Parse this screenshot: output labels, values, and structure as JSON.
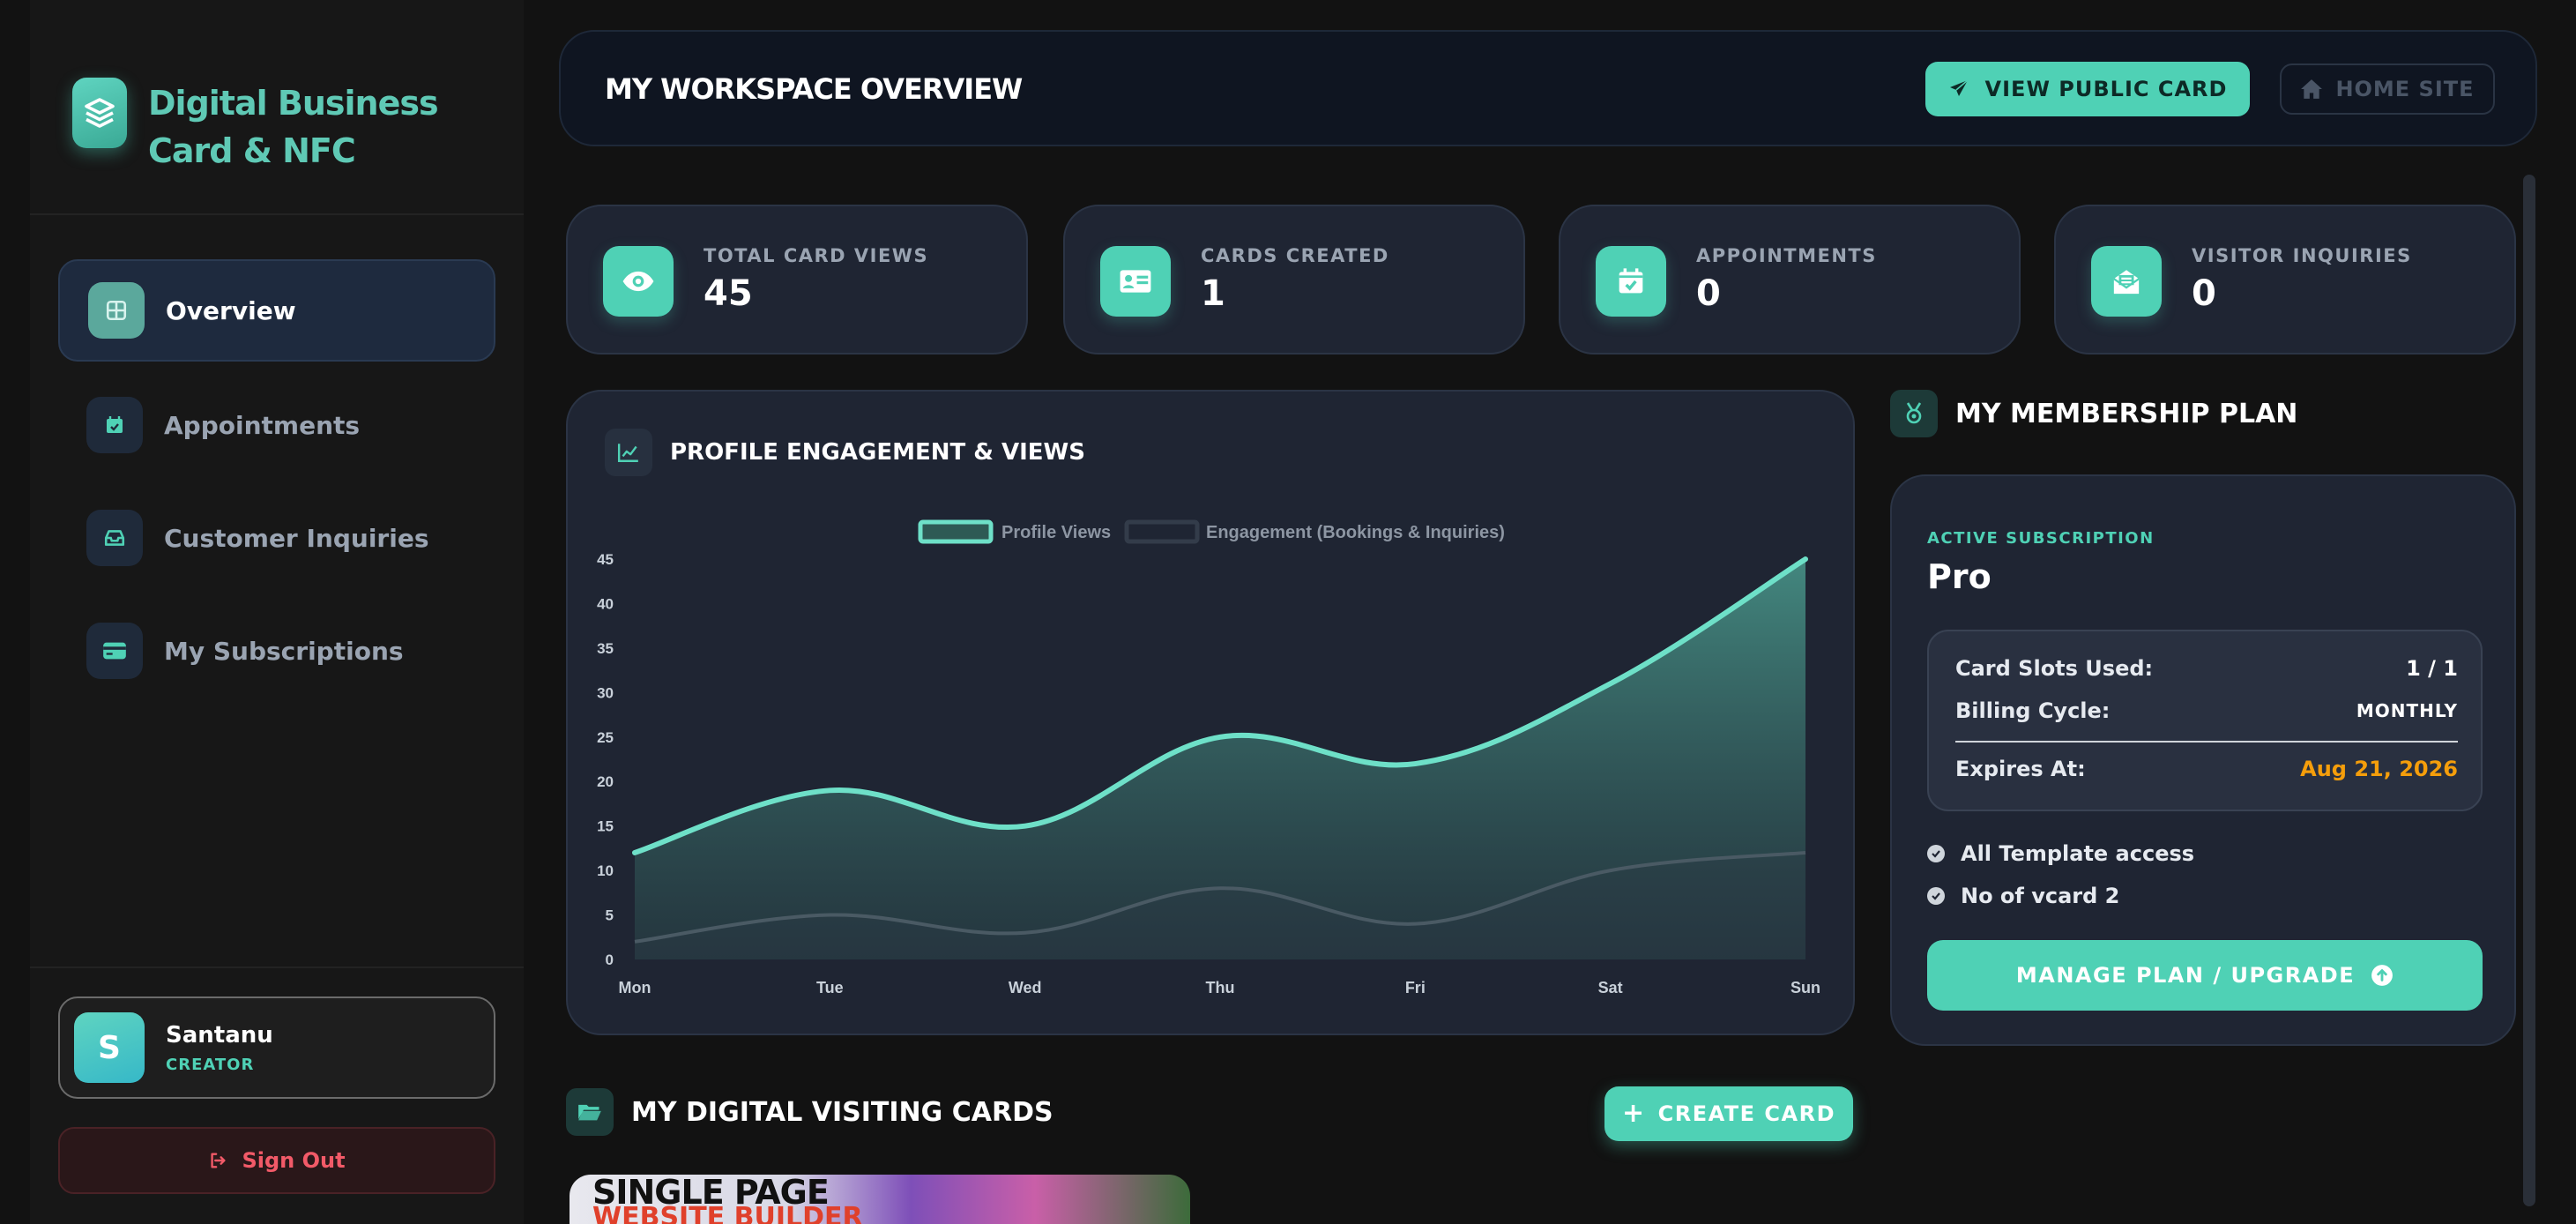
{
  "brand": {
    "title": "Digital Business Card & NFC",
    "icon": "layers-icon"
  },
  "sidebar": {
    "items": [
      {
        "label": "Overview",
        "icon": "grid-icon",
        "active": true
      },
      {
        "label": "Appointments",
        "icon": "calendar-check-icon",
        "active": false
      },
      {
        "label": "Customer Inquiries",
        "icon": "inbox-icon",
        "active": false
      },
      {
        "label": "My Subscriptions",
        "icon": "credit-card-icon",
        "active": false
      }
    ],
    "user": {
      "initial": "S",
      "name": "Santanu",
      "role": "CREATOR"
    },
    "signout_label": "Sign Out"
  },
  "header": {
    "title": "MY WORKSPACE OVERVIEW",
    "view_public_label": "VIEW PUBLIC CARD",
    "home_site_label": "HOME SITE"
  },
  "stats": [
    {
      "label": "TOTAL CARD VIEWS",
      "value": "45",
      "icon": "eye-icon"
    },
    {
      "label": "CARDS CREATED",
      "value": "1",
      "icon": "id-card-icon"
    },
    {
      "label": "APPOINTMENTS",
      "value": "0",
      "icon": "calendar-check-icon"
    },
    {
      "label": "VISITOR INQUIRIES",
      "value": "0",
      "icon": "envelope-open-icon"
    }
  ],
  "engagement": {
    "title": "PROFILE ENGAGEMENT & VIEWS"
  },
  "chart_data": {
    "type": "area",
    "categories": [
      "Mon",
      "Tue",
      "Wed",
      "Thu",
      "Fri",
      "Sat",
      "Sun"
    ],
    "series": [
      {
        "name": "Profile Views",
        "values": [
          12,
          19,
          15,
          25,
          22,
          31,
          45
        ],
        "color": "#6ee0c8"
      },
      {
        "name": "Engagement (Bookings & Inquiries)",
        "values": [
          2,
          5,
          3,
          8,
          4,
          10,
          12
        ],
        "color": "#3a4656"
      }
    ],
    "yticks": [
      0,
      5,
      10,
      15,
      20,
      25,
      30,
      35,
      40,
      45
    ],
    "ylim": [
      0,
      45
    ],
    "legend": "top-center",
    "grid": false
  },
  "membership": {
    "title": "MY MEMBERSHIP PLAN",
    "icon": "medal-icon",
    "subscription_label": "ACTIVE SUBSCRIPTION",
    "plan": "Pro",
    "rows": [
      {
        "key": "Card Slots Used:",
        "value": "1 / 1"
      },
      {
        "key": "Billing Cycle:",
        "value": "MONTHLY"
      },
      {
        "key": "Expires At:",
        "value": "Aug 21, 2026"
      }
    ],
    "features": [
      "All Template access",
      "No of vcard 2"
    ],
    "manage_label": "MANAGE PLAN / UPGRADE",
    "colors": {
      "expires": "#f59e0b",
      "accent": "#4fd1b5"
    }
  },
  "cards": {
    "title": "MY DIGITAL VISITING CARDS",
    "create_label": "CREATE CARD",
    "preview": {
      "line1": "SINGLE PAGE",
      "line2": "WEBSITE BUILDER"
    }
  }
}
